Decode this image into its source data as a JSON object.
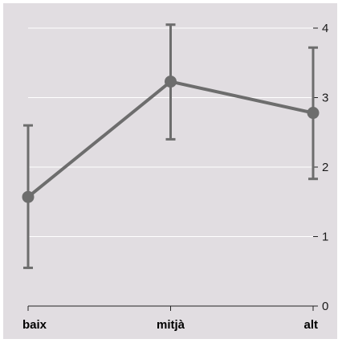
{
  "chart_data": {
    "type": "line",
    "categories": [
      "baix",
      "mitjà",
      "alt"
    ],
    "series": [
      {
        "values": [
          1.57,
          3.23,
          2.78
        ],
        "error_low": [
          0.55,
          2.4,
          1.83
        ],
        "error_high": [
          2.6,
          4.05,
          3.72
        ]
      }
    ],
    "yticks": [
      "0",
      "1",
      "2",
      "3",
      "4"
    ],
    "ylim": [
      0,
      4.25
    ],
    "y_axis_side": "right",
    "grid": true,
    "colors": {
      "background": "#e1dde1",
      "line": "#6d6d6d",
      "grid": "#ffffff",
      "axis": "#222222"
    }
  }
}
